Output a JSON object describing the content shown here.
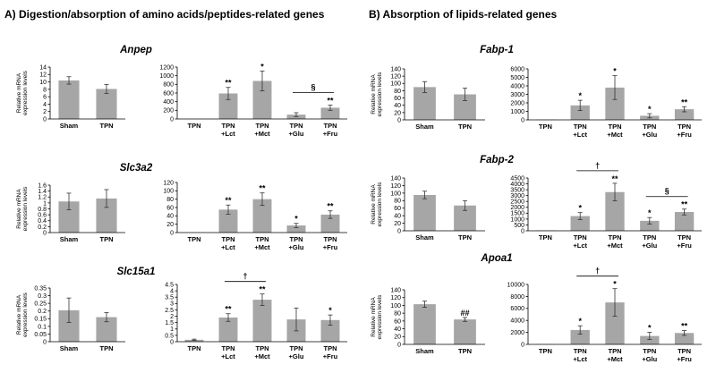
{
  "sections": [
    {
      "label": "A) Digestion/absorption of amino acids/peptides-related genes"
    },
    {
      "label": "B) Absorption of lipids-related genes"
    }
  ],
  "genes": [
    "Anpep",
    "Slc3a2",
    "Slc15a1",
    "Fabp-1",
    "Fabp-2",
    "Apoa1"
  ],
  "ylabel_lines": [
    "Relative mRNA",
    "expression levels"
  ],
  "chart_data": [
    {
      "type": "bar",
      "gene": "Anpep",
      "panel": "sham-vs-tpn",
      "categories": [
        "Sham",
        "TPN"
      ],
      "values": [
        10.4,
        8.1
      ],
      "errors": [
        1.0,
        1.2
      ],
      "ylim": [
        0,
        14
      ],
      "yticks": [
        0,
        2,
        4,
        6,
        8,
        10,
        12,
        14
      ],
      "annotations": [
        "",
        ""
      ]
    },
    {
      "type": "bar",
      "gene": "Anpep",
      "panel": "tpn-treatments",
      "categories": [
        "TPN",
        "TPN\n+Lct",
        "TPN\n+Mct",
        "TPN\n+Glu",
        "TPN\n+Fru"
      ],
      "values": [
        0,
        590,
        880,
        100,
        260
      ],
      "errors": [
        0,
        140,
        230,
        45,
        60
      ],
      "ylim": [
        0,
        1200
      ],
      "yticks": [
        0,
        200,
        400,
        600,
        800,
        1000,
        1200
      ],
      "annotations": [
        "",
        "**",
        "*",
        "",
        "**"
      ],
      "brackets": [
        {
          "from": 3,
          "to": 4,
          "symbol": "§"
        }
      ]
    },
    {
      "type": "bar",
      "gene": "Slc3a2",
      "panel": "sham-vs-tpn",
      "categories": [
        "Sham",
        "TPN"
      ],
      "values": [
        1.05,
        1.15
      ],
      "errors": [
        0.28,
        0.3
      ],
      "ylim": [
        0,
        1.6
      ],
      "yticks": [
        0,
        0.2,
        0.4,
        0.6,
        0.8,
        1,
        1.2,
        1.4,
        1.6
      ],
      "annotations": [
        "",
        ""
      ]
    },
    {
      "type": "bar",
      "gene": "Slc3a2",
      "panel": "tpn-treatments",
      "categories": [
        "TPN",
        "TPN\n+Lct",
        "TPN\n+Mct",
        "TPN\n+Glu",
        "TPN\n+Fru"
      ],
      "values": [
        0,
        55,
        80,
        17,
        43
      ],
      "errors": [
        0,
        11,
        15,
        5,
        9
      ],
      "ylim": [
        0,
        120
      ],
      "yticks": [
        0,
        20,
        40,
        60,
        80,
        100,
        120
      ],
      "annotations": [
        "",
        "**",
        "**",
        "*",
        "**"
      ]
    },
    {
      "type": "bar",
      "gene": "Slc15a1",
      "panel": "sham-vs-tpn",
      "categories": [
        "Sham",
        "TPN"
      ],
      "values": [
        0.205,
        0.16
      ],
      "errors": [
        0.08,
        0.03
      ],
      "ylim": [
        0,
        0.35
      ],
      "yticks": [
        0,
        0.05,
        0.1,
        0.15,
        0.2,
        0.25,
        0.3,
        0.35
      ],
      "annotations": [
        "",
        ""
      ]
    },
    {
      "type": "bar",
      "gene": "Slc15a1",
      "panel": "tpn-treatments",
      "categories": [
        "TPN",
        "TPN\n+Lct",
        "TPN\n+Mct",
        "TPN\n+Glu",
        "TPN\n+Fru"
      ],
      "values": [
        0.15,
        1.9,
        3.3,
        1.75,
        1.7
      ],
      "errors": [
        0.05,
        0.3,
        0.45,
        0.9,
        0.4
      ],
      "ylim": [
        0,
        4.5
      ],
      "yticks": [
        0,
        0.5,
        1,
        1.5,
        2,
        2.5,
        3,
        3.5,
        4,
        4.5
      ],
      "annotations": [
        "",
        "**",
        "**",
        "",
        "*"
      ],
      "brackets": [
        {
          "from": 1,
          "to": 2,
          "symbol": "†"
        }
      ]
    },
    {
      "type": "bar",
      "gene": "Fabp-1",
      "panel": "sham-vs-tpn",
      "categories": [
        "Sham",
        "TPN"
      ],
      "values": [
        90,
        70
      ],
      "errors": [
        15,
        17
      ],
      "ylim": [
        0,
        140
      ],
      "yticks": [
        0,
        20,
        40,
        60,
        80,
        100,
        120,
        140
      ],
      "annotations": [
        "",
        ""
      ]
    },
    {
      "type": "bar",
      "gene": "Fabp-1",
      "panel": "tpn-treatments",
      "categories": [
        "TPN",
        "TPN\n+Lct",
        "TPN\n+Mct",
        "TPN\n+Glu",
        "TPN\n+Fru"
      ],
      "values": [
        30,
        1700,
        3800,
        480,
        1250
      ],
      "errors": [
        0,
        600,
        1400,
        250,
        300
      ],
      "ylim": [
        0,
        6000
      ],
      "yticks": [
        0,
        1000,
        2000,
        3000,
        4000,
        5000,
        6000
      ],
      "annotations": [
        "",
        "*",
        "*",
        "*",
        "**"
      ]
    },
    {
      "type": "bar",
      "gene": "Fabp-2",
      "panel": "sham-vs-tpn",
      "categories": [
        "Sham",
        "TPN"
      ],
      "values": [
        95,
        67
      ],
      "errors": [
        10,
        13
      ],
      "ylim": [
        0,
        140
      ],
      "yticks": [
        0,
        20,
        40,
        60,
        80,
        100,
        120,
        140
      ],
      "annotations": [
        "",
        ""
      ]
    },
    {
      "type": "bar",
      "gene": "Fabp-2",
      "panel": "tpn-treatments",
      "categories": [
        "TPN",
        "TPN\n+Lct",
        "TPN\n+Mct",
        "TPN\n+Glu",
        "TPN\n+Fru"
      ],
      "values": [
        30,
        1250,
        3300,
        850,
        1600
      ],
      "errors": [
        0,
        300,
        750,
        280,
        250
      ],
      "ylim": [
        0,
        4500
      ],
      "yticks": [
        0,
        500,
        1000,
        1500,
        2000,
        2500,
        3000,
        3500,
        4000,
        4500
      ],
      "annotations": [
        "",
        "*",
        "**",
        "*",
        "**"
      ],
      "brackets": [
        {
          "from": 1,
          "to": 2,
          "symbol": "†"
        },
        {
          "from": 3,
          "to": 4,
          "symbol": "§"
        }
      ]
    },
    {
      "type": "bar",
      "gene": "Apoa1",
      "panel": "sham-vs-tpn",
      "categories": [
        "Sham",
        "TPN"
      ],
      "values": [
        103,
        64
      ],
      "errors": [
        8,
        5
      ],
      "ylim": [
        0,
        140
      ],
      "yticks": [
        0,
        20,
        40,
        60,
        80,
        100,
        120,
        140
      ],
      "annotations": [
        "",
        "##"
      ]
    },
    {
      "type": "bar",
      "gene": "Apoa1",
      "panel": "tpn-treatments",
      "categories": [
        "TPN",
        "TPN\n+Lct",
        "TPN\n+Mct",
        "TPN\n+Glu",
        "TPN\n+Fru"
      ],
      "values": [
        40,
        2400,
        7000,
        1400,
        1900
      ],
      "errors": [
        0,
        700,
        2300,
        600,
        400
      ],
      "ylim": [
        0,
        10000
      ],
      "yticks": [
        0,
        2000,
        4000,
        6000,
        8000,
        10000
      ],
      "annotations": [
        "",
        "*",
        "*",
        "*",
        "**"
      ],
      "brackets": [
        {
          "from": 1,
          "to": 2,
          "symbol": "†"
        }
      ]
    }
  ]
}
